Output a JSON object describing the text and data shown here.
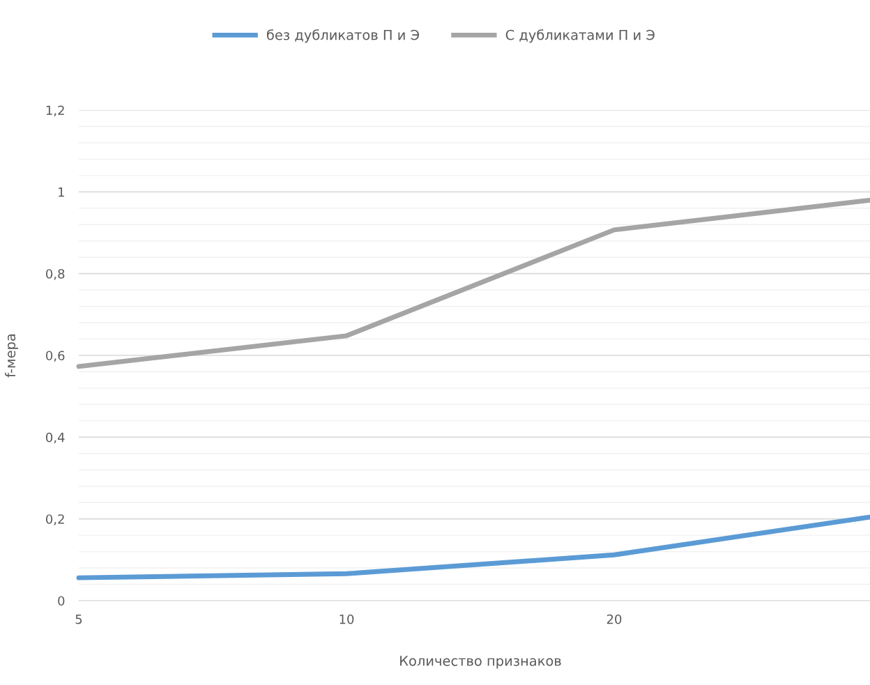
{
  "chart_data": {
    "type": "line",
    "xlabel": "Количество признаков",
    "ylabel": "f-мера",
    "categories": [
      "5",
      "10",
      "20",
      null
    ],
    "series": [
      {
        "name": "без дубликатов П и Э",
        "color": "#5b9bd5",
        "values": [
          0.056,
          0.066,
          0.112,
          0.209
        ]
      },
      {
        "name": "С дубликатами П и Э",
        "color": "#a5a5a5",
        "values": [
          0.573,
          0.648,
          0.907,
          0.983
        ]
      }
    ],
    "ylim": [
      0,
      1.2
    ],
    "yticks": [
      0,
      {
        "value": 0.2,
        "label": "0,2"
      },
      {
        "value": 0.4,
        "label": "0,4"
      },
      {
        "value": 0.6,
        "label": "0,6"
      },
      {
        "value": 0.8,
        "label": "0,8"
      },
      1,
      {
        "value": 1.2,
        "label": "1,2"
      }
    ],
    "grid": "y",
    "legend": "top",
    "marker": "none",
    "line_style": "solid"
  }
}
